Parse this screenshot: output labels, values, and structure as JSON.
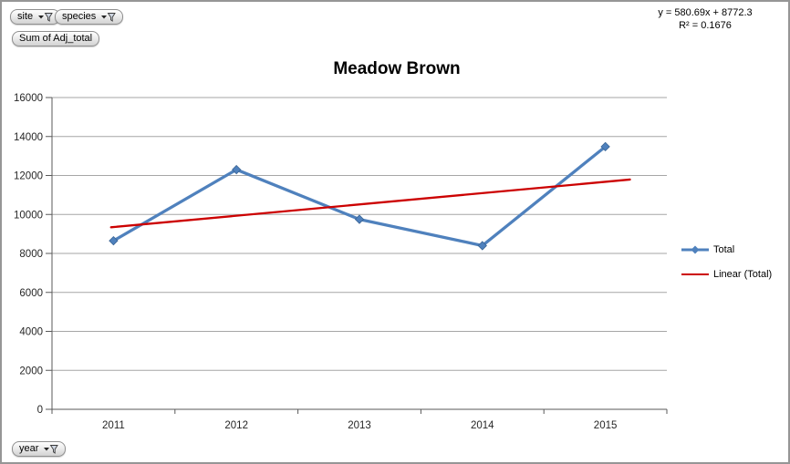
{
  "pivot_fields": {
    "site": {
      "label": "site"
    },
    "species": {
      "label": "species"
    },
    "value": {
      "label": "Sum of Adj_total"
    },
    "axis": {
      "label": "year"
    }
  },
  "annotation": {
    "equation": "y = 580.69x + 8772.3",
    "r_squared": "R² = 0.1676"
  },
  "chart_data": {
    "type": "line",
    "title": "Meadow Brown",
    "categories": [
      "2011",
      "2012",
      "2013",
      "2014",
      "2015"
    ],
    "series": [
      {
        "name": "Total",
        "color": "#4F81BD",
        "marker": "diamond",
        "values": [
          8650,
          12300,
          9750,
          8400,
          13480
        ]
      }
    ],
    "trendline": {
      "name": "Linear (Total)",
      "color": "#CC0000",
      "slope": 580.69,
      "intercept": 8772.3,
      "x_start": 0.98,
      "x_end": 5.2
    },
    "xlabel": "",
    "ylabel": "",
    "ylim": [
      0,
      16000
    ],
    "y_tick_step": 2000,
    "grid": true,
    "legend_position": "right",
    "colors": {
      "gridline": "#A6A6A6",
      "axis": "#595959",
      "tick_label": "#262626"
    }
  }
}
